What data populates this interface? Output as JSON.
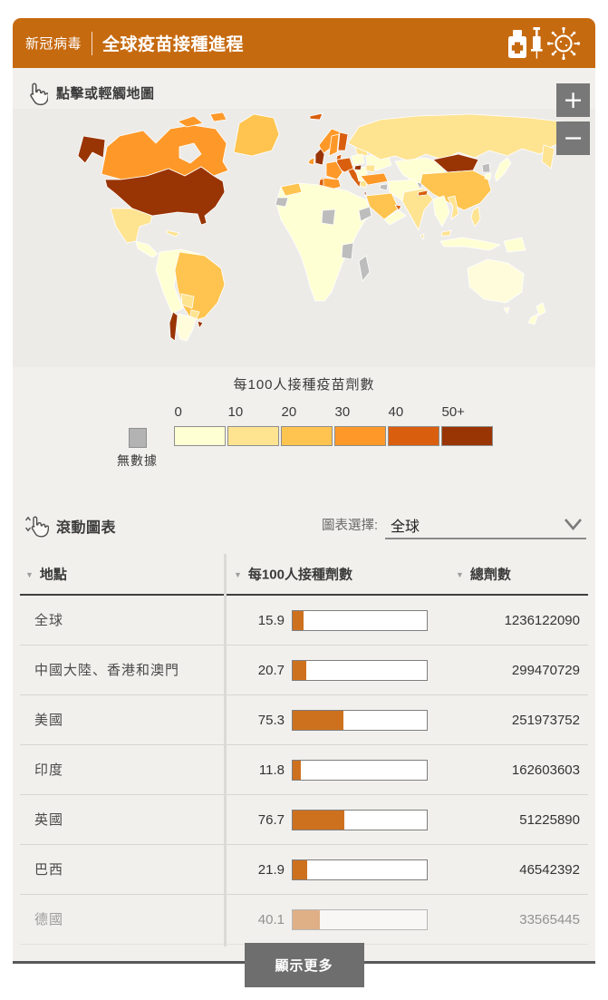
{
  "header": {
    "kicker": "新冠病毒",
    "title": "全球疫苗接種進程",
    "icons": [
      "vaccine-bottle-icon",
      "syringe-icon",
      "virus-icon"
    ],
    "accent_color": "#C66A10"
  },
  "map": {
    "instruction": "點擊或輕觸地圖",
    "zoom_in_label": "+",
    "zoom_out_label": "−"
  },
  "legend": {
    "title": "每100人接種疫苗劑數",
    "ticks": [
      "0",
      "10",
      "20",
      "30",
      "40",
      "50+"
    ],
    "colors": [
      "#FFFFD4",
      "#FEE391",
      "#FEC44F",
      "#FE9929",
      "#D95F0E",
      "#993404"
    ],
    "no_data_label": "無數據",
    "no_data_color": "#B3B3B3"
  },
  "controls": {
    "scroll_hint": "滾動圖表",
    "selector_label": "圖表選擇:",
    "selector_value": "全球"
  },
  "table": {
    "columns": [
      "地點",
      "每100人接種劑數",
      "總劑數"
    ],
    "bar_max": 200,
    "bar_color": "#CE711F",
    "rows": [
      {
        "location": "全球",
        "per100": "15.9",
        "total": "1236122090"
      },
      {
        "location": "中國大陸、香港和澳門",
        "per100": "20.7",
        "total": "299470729"
      },
      {
        "location": "美國",
        "per100": "75.3",
        "total": "251973752"
      },
      {
        "location": "印度",
        "per100": "11.8",
        "total": "162603603"
      },
      {
        "location": "英國",
        "per100": "76.7",
        "total": "51225890"
      },
      {
        "location": "巴西",
        "per100": "21.9",
        "total": "46542392"
      },
      {
        "location": "德國",
        "per100": "40.1",
        "total": "33565445"
      }
    ]
  },
  "footer": {
    "show_more_label": "顯示更多"
  },
  "chart_data": {
    "type": "table",
    "title": "全球疫苗接種進程",
    "columns": [
      "地點",
      "每100人接種劑數",
      "總劑數"
    ],
    "rows": [
      {
        "location": "全球",
        "doses_per_100": 15.9,
        "total_doses": 1236122090
      },
      {
        "location": "中國大陸、香港和澳門",
        "doses_per_100": 20.7,
        "total_doses": 299470729
      },
      {
        "location": "美國",
        "doses_per_100": 75.3,
        "total_doses": 251973752
      },
      {
        "location": "印度",
        "doses_per_100": 11.8,
        "total_doses": 162603603
      },
      {
        "location": "英國",
        "doses_per_100": 76.7,
        "total_doses": 51225890
      },
      {
        "location": "巴西",
        "doses_per_100": 21.9,
        "total_doses": 46542392
      },
      {
        "location": "德國",
        "doses_per_100": 40.1,
        "total_doses": 33565445
      }
    ],
    "bar_axis_range": [
      0,
      200
    ],
    "map_legend": {
      "title": "每100人接種疫苗劑數",
      "bins": [
        "0-10",
        "10-20",
        "20-30",
        "30-40",
        "40-50",
        "50+"
      ],
      "colors": [
        "#FFFFD4",
        "#FEE391",
        "#FEC44F",
        "#FE9929",
        "#D95F0E",
        "#993404"
      ],
      "no_data_label": "無數據",
      "no_data_color": "#B3B3B3"
    },
    "map_type": "world-choropleth"
  }
}
